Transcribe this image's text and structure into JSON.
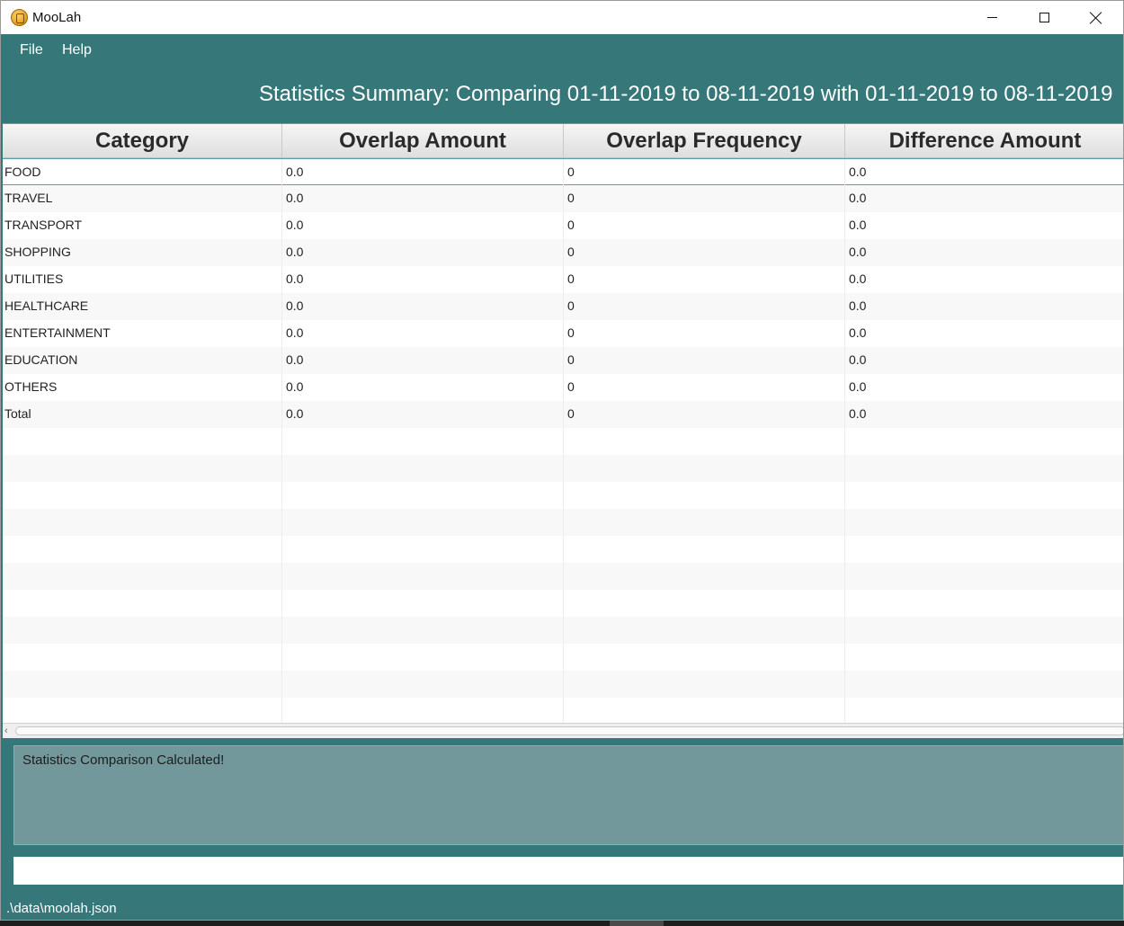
{
  "window": {
    "title": "MooLah"
  },
  "menu": {
    "file": "File",
    "help": "Help"
  },
  "heading": "Statistics Summary: Comparing 01-11-2019 to 08-11-2019 with 01-11-2019 to 08-11-2019",
  "table": {
    "columns": [
      "Category",
      "Overlap Amount",
      "Overlap Frequency",
      "Difference Amount"
    ],
    "rows": [
      [
        "FOOD",
        "0.0",
        "0",
        "0.0"
      ],
      [
        "TRAVEL",
        "0.0",
        "0",
        "0.0"
      ],
      [
        "TRANSPORT",
        "0.0",
        "0",
        "0.0"
      ],
      [
        "SHOPPING",
        "0.0",
        "0",
        "0.0"
      ],
      [
        "UTILITIES",
        "0.0",
        "0",
        "0.0"
      ],
      [
        "HEALTHCARE",
        "0.0",
        "0",
        "0.0"
      ],
      [
        "ENTERTAINMENT",
        "0.0",
        "0",
        "0.0"
      ],
      [
        "EDUCATION",
        "0.0",
        "0",
        "0.0"
      ],
      [
        "OTHERS",
        "0.0",
        "0",
        "0.0"
      ],
      [
        "Total",
        "0.0",
        "0",
        "0.0"
      ]
    ],
    "selected_row": 0
  },
  "result_display": {
    "text": "Statistics Comparison Calculated!"
  },
  "command_box": {
    "value": ""
  },
  "status_bar": {
    "file_path": ".\\data\\moolah.json"
  },
  "icons": {
    "app": "moolah-coin-icon",
    "minimize": "minimize-icon",
    "maximize": "maximize-icon",
    "close": "close-icon",
    "scroll_left": "chevron-left-icon"
  }
}
